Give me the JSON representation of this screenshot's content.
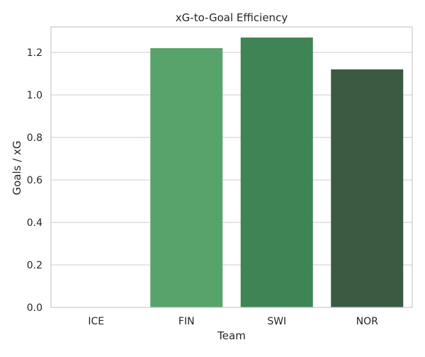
{
  "chart_data": {
    "type": "bar",
    "title": "xG-to-Goal Efficiency",
    "xlabel": "Team",
    "ylabel": "Goals / xG",
    "categories": [
      "ICE",
      "FIN",
      "SWI",
      "NOR"
    ],
    "values": [
      0.0,
      1.22,
      1.27,
      1.12
    ],
    "colors": [
      "#6dbd7b",
      "#58a36b",
      "#3f8455",
      "#3a5a42"
    ],
    "ylim": [
      0,
      1.32
    ],
    "yticks": [
      0.0,
      0.2,
      0.4,
      0.6,
      0.8,
      1.0,
      1.2
    ],
    "ytick_labels": [
      "0.0",
      "0.2",
      "0.4",
      "0.6",
      "0.8",
      "1.0",
      "1.2"
    ],
    "grid": true,
    "grid_axis": "y",
    "frame_color": "#cccccc",
    "grid_color": "#cccccc"
  }
}
